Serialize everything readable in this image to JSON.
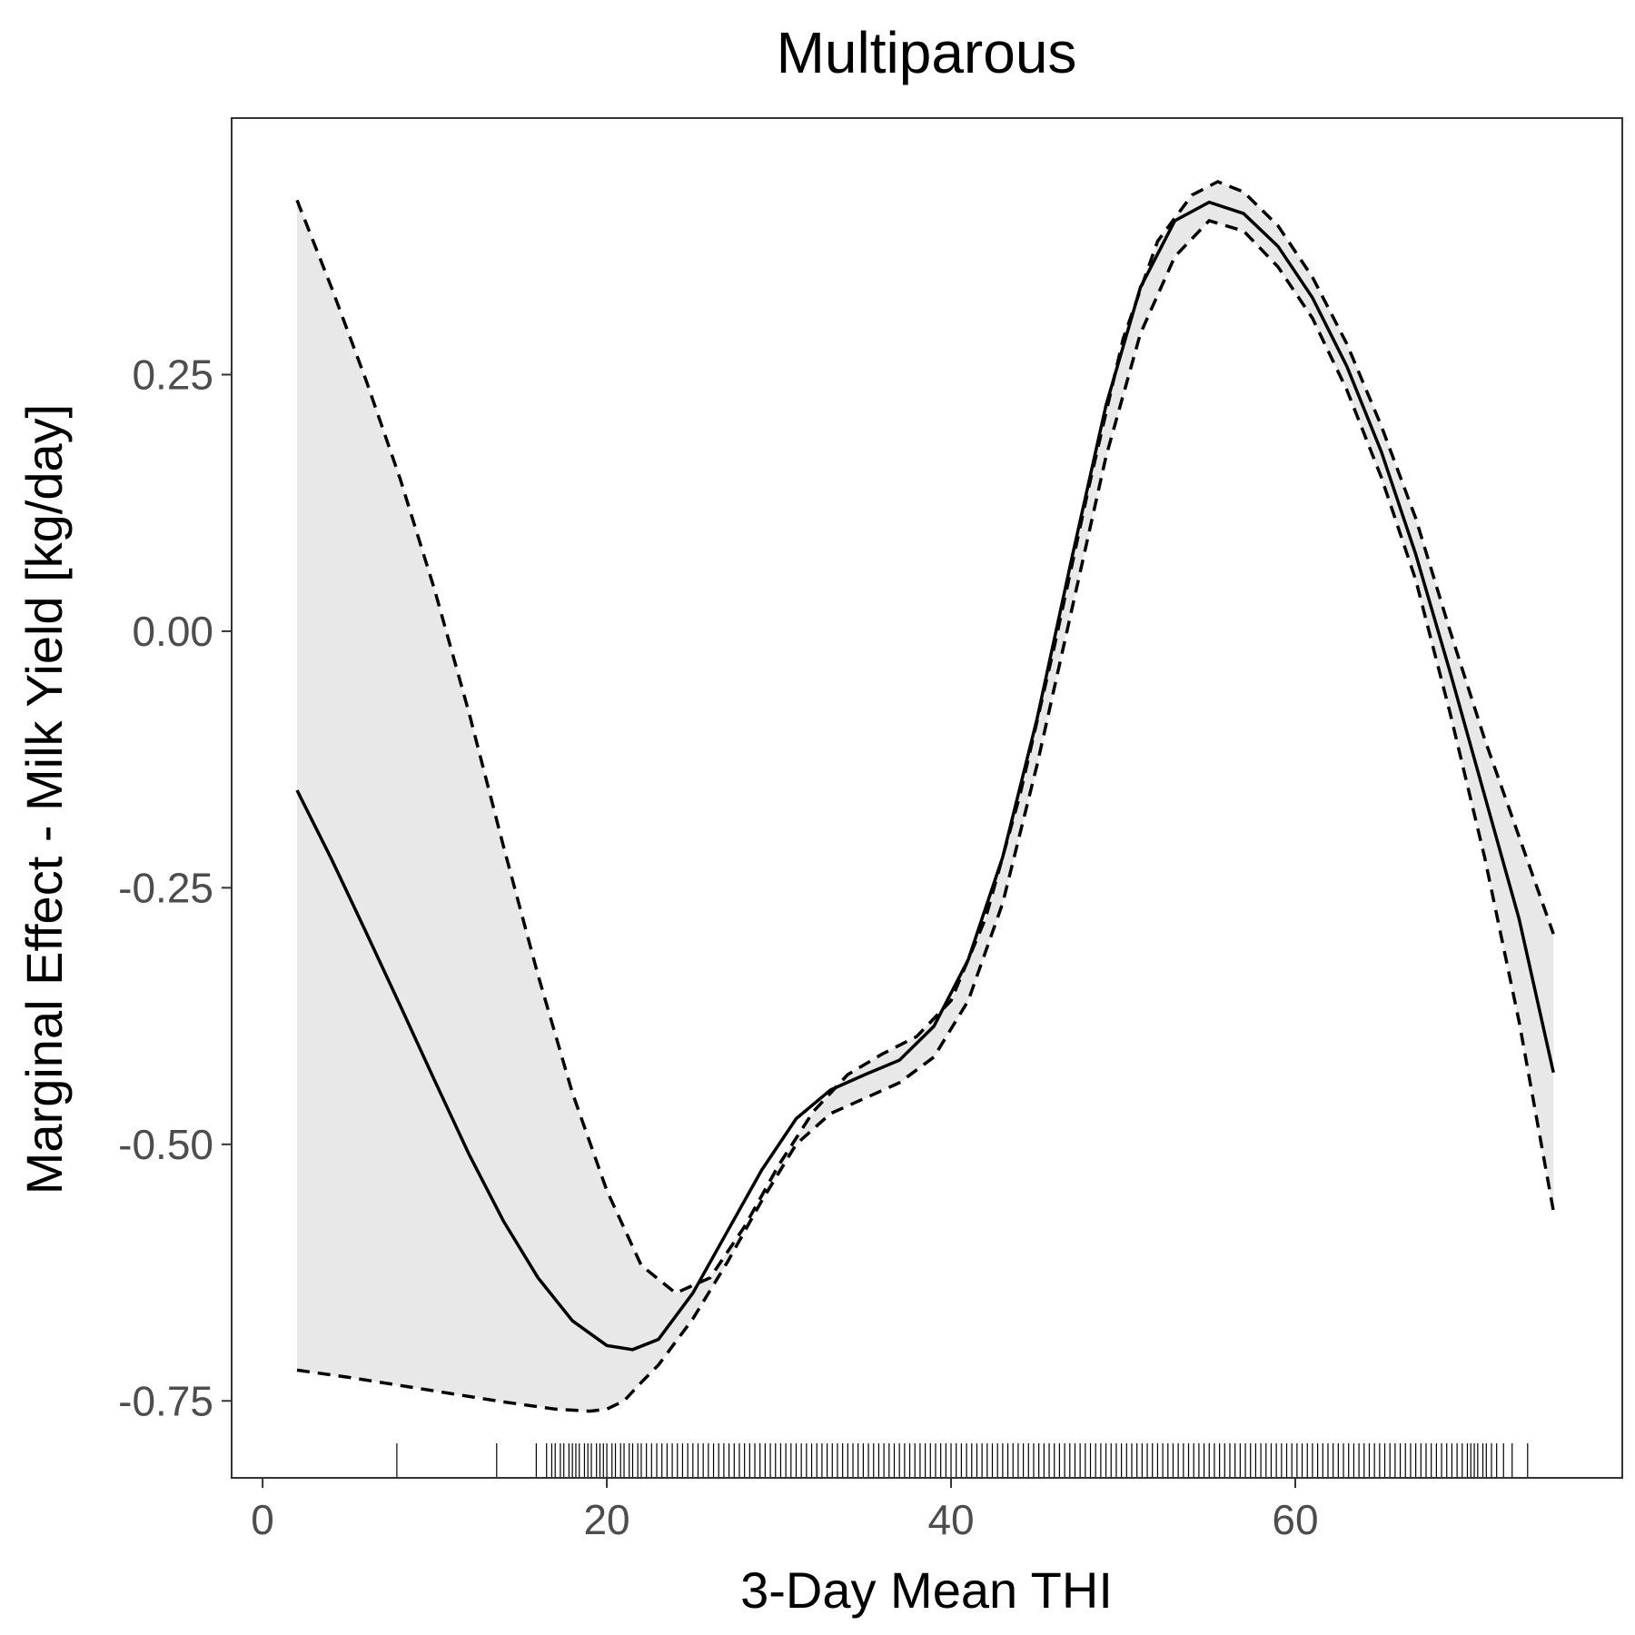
{
  "chart_data": {
    "type": "line",
    "title": "Multiparous",
    "xlabel": "3-Day Mean THI",
    "ylabel": "Marginal Effect - Milk Yield [kg/day]",
    "xlim": [
      -1.8,
      79
    ],
    "ylim": [
      -0.825,
      0.5
    ],
    "x_ticks": [
      0,
      20,
      40,
      60
    ],
    "x_tick_labels": [
      "0",
      "20",
      "40",
      "60"
    ],
    "y_ticks": [
      -0.75,
      -0.5,
      -0.25,
      0.0,
      0.25
    ],
    "y_tick_labels": [
      "-0.75",
      "-0.50",
      "-0.25",
      "0.00",
      "0.25"
    ],
    "grid": false,
    "legend": "none",
    "ribbon_color": "#e8e8e8",
    "line_color": "#000000",
    "series": [
      {
        "style": "solid",
        "x": [
          2,
          4,
          6,
          8,
          10,
          12,
          14,
          16,
          18,
          20,
          21.5,
          23,
          25,
          27,
          29,
          31,
          33,
          35,
          37,
          39,
          41,
          43,
          45,
          47,
          49,
          51,
          53,
          55,
          57,
          59,
          61,
          63,
          65,
          67,
          69,
          71,
          73,
          75
        ],
        "y": [
          -0.155,
          -0.222,
          -0.293,
          -0.365,
          -0.438,
          -0.51,
          -0.575,
          -0.63,
          -0.672,
          -0.696,
          -0.7,
          -0.69,
          -0.645,
          -0.585,
          -0.525,
          -0.475,
          -0.447,
          -0.432,
          -0.418,
          -0.385,
          -0.32,
          -0.22,
          -0.085,
          0.07,
          0.22,
          0.335,
          0.4,
          0.418,
          0.407,
          0.375,
          0.325,
          0.258,
          0.175,
          0.075,
          -0.04,
          -0.16,
          -0.28,
          -0.43
        ]
      },
      {
        "style": "dashed",
        "x": [
          2,
          4,
          6,
          8,
          10,
          12,
          14,
          16,
          18,
          20,
          22,
          24,
          26,
          28,
          30,
          32,
          34,
          36,
          38,
          40,
          42,
          44,
          46,
          48,
          50,
          52,
          54,
          55.5,
          57,
          59,
          61,
          63,
          65,
          67,
          69,
          71,
          73,
          75
        ],
        "y": [
          0.42,
          0.335,
          0.245,
          0.148,
          0.04,
          -0.08,
          -0.21,
          -0.335,
          -0.45,
          -0.545,
          -0.618,
          -0.645,
          -0.63,
          -0.58,
          -0.52,
          -0.468,
          -0.432,
          -0.412,
          -0.395,
          -0.36,
          -0.28,
          -0.16,
          -0.015,
          0.14,
          0.285,
          0.38,
          0.425,
          0.438,
          0.428,
          0.395,
          0.345,
          0.28,
          0.2,
          0.11,
          0.0,
          -0.105,
          -0.2,
          -0.295
        ]
      },
      {
        "style": "dashed",
        "x": [
          2,
          5,
          8,
          11,
          14,
          17,
          19,
          20,
          21,
          22,
          23,
          25,
          27,
          29,
          31,
          33,
          35,
          37,
          39,
          41,
          43,
          45,
          47,
          49,
          51,
          53,
          55,
          57,
          59,
          61,
          63,
          65,
          67,
          69,
          71,
          73,
          75
        ],
        "y": [
          -0.72,
          -0.727,
          -0.735,
          -0.743,
          -0.751,
          -0.758,
          -0.76,
          -0.758,
          -0.75,
          -0.732,
          -0.715,
          -0.67,
          -0.615,
          -0.555,
          -0.5,
          -0.47,
          -0.455,
          -0.44,
          -0.415,
          -0.36,
          -0.265,
          -0.13,
          0.02,
          0.17,
          0.29,
          0.365,
          0.4,
          0.39,
          0.355,
          0.305,
          0.235,
          0.15,
          0.05,
          -0.08,
          -0.22,
          -0.38,
          -0.565
        ]
      }
    ],
    "rug_x": [
      7.8,
      13.6,
      15.9,
      16.5,
      16.8,
      17.0,
      17.3,
      17.5,
      17.8,
      18.0,
      18.2,
      18.4,
      18.7,
      18.9,
      19.1,
      19.4,
      19.6,
      19.8,
      20.0,
      20.3,
      20.5,
      20.8,
      21.0,
      21.3,
      21.5,
      21.8,
      22.0,
      22.3,
      22.6,
      22.9,
      23.2,
      23.5,
      23.8,
      24.1,
      24.4,
      24.7,
      25.0,
      25.3,
      25.6,
      25.9,
      26.2,
      26.5,
      26.8,
      27.1,
      27.4,
      27.7,
      28.0,
      28.3,
      28.6,
      28.9,
      29.2,
      29.5,
      29.8,
      30.1,
      30.4,
      30.7,
      31.0,
      31.3,
      31.6,
      31.9,
      32.2,
      32.5,
      32.8,
      33.1,
      33.4,
      33.7,
      34.0,
      34.3,
      34.6,
      34.9,
      35.2,
      35.5,
      35.8,
      36.1,
      36.4,
      36.7,
      37.0,
      37.3,
      37.6,
      37.9,
      38.2,
      38.5,
      38.8,
      39.1,
      39.4,
      39.7,
      40.0,
      40.3,
      40.6,
      40.9,
      41.2,
      41.5,
      41.8,
      42.1,
      42.4,
      42.7,
      43.0,
      43.3,
      43.6,
      43.9,
      44.2,
      44.5,
      44.8,
      45.1,
      45.4,
      45.7,
      46.0,
      46.3,
      46.6,
      46.9,
      47.2,
      47.5,
      47.8,
      48.1,
      48.4,
      48.7,
      49.0,
      49.3,
      49.6,
      49.9,
      50.2,
      50.5,
      50.8,
      51.1,
      51.4,
      51.7,
      52.0,
      52.3,
      52.6,
      52.9,
      53.2,
      53.5,
      53.8,
      54.1,
      54.4,
      54.7,
      55.0,
      55.3,
      55.6,
      55.9,
      56.2,
      56.5,
      56.8,
      57.1,
      57.4,
      57.7,
      58.0,
      58.3,
      58.6,
      58.9,
      59.2,
      59.5,
      59.8,
      60.1,
      60.4,
      60.7,
      61.0,
      61.3,
      61.6,
      61.9,
      62.2,
      62.5,
      62.8,
      63.1,
      63.4,
      63.7,
      64.0,
      64.3,
      64.6,
      64.9,
      65.2,
      65.5,
      65.8,
      66.1,
      66.4,
      66.7,
      67.0,
      67.3,
      67.6,
      67.9,
      68.2,
      68.5,
      68.8,
      69.1,
      69.4,
      69.7,
      70.0,
      70.2,
      70.4,
      70.6,
      70.9,
      71.1,
      71.4,
      71.7,
      72.1,
      72.6,
      73.5
    ]
  }
}
